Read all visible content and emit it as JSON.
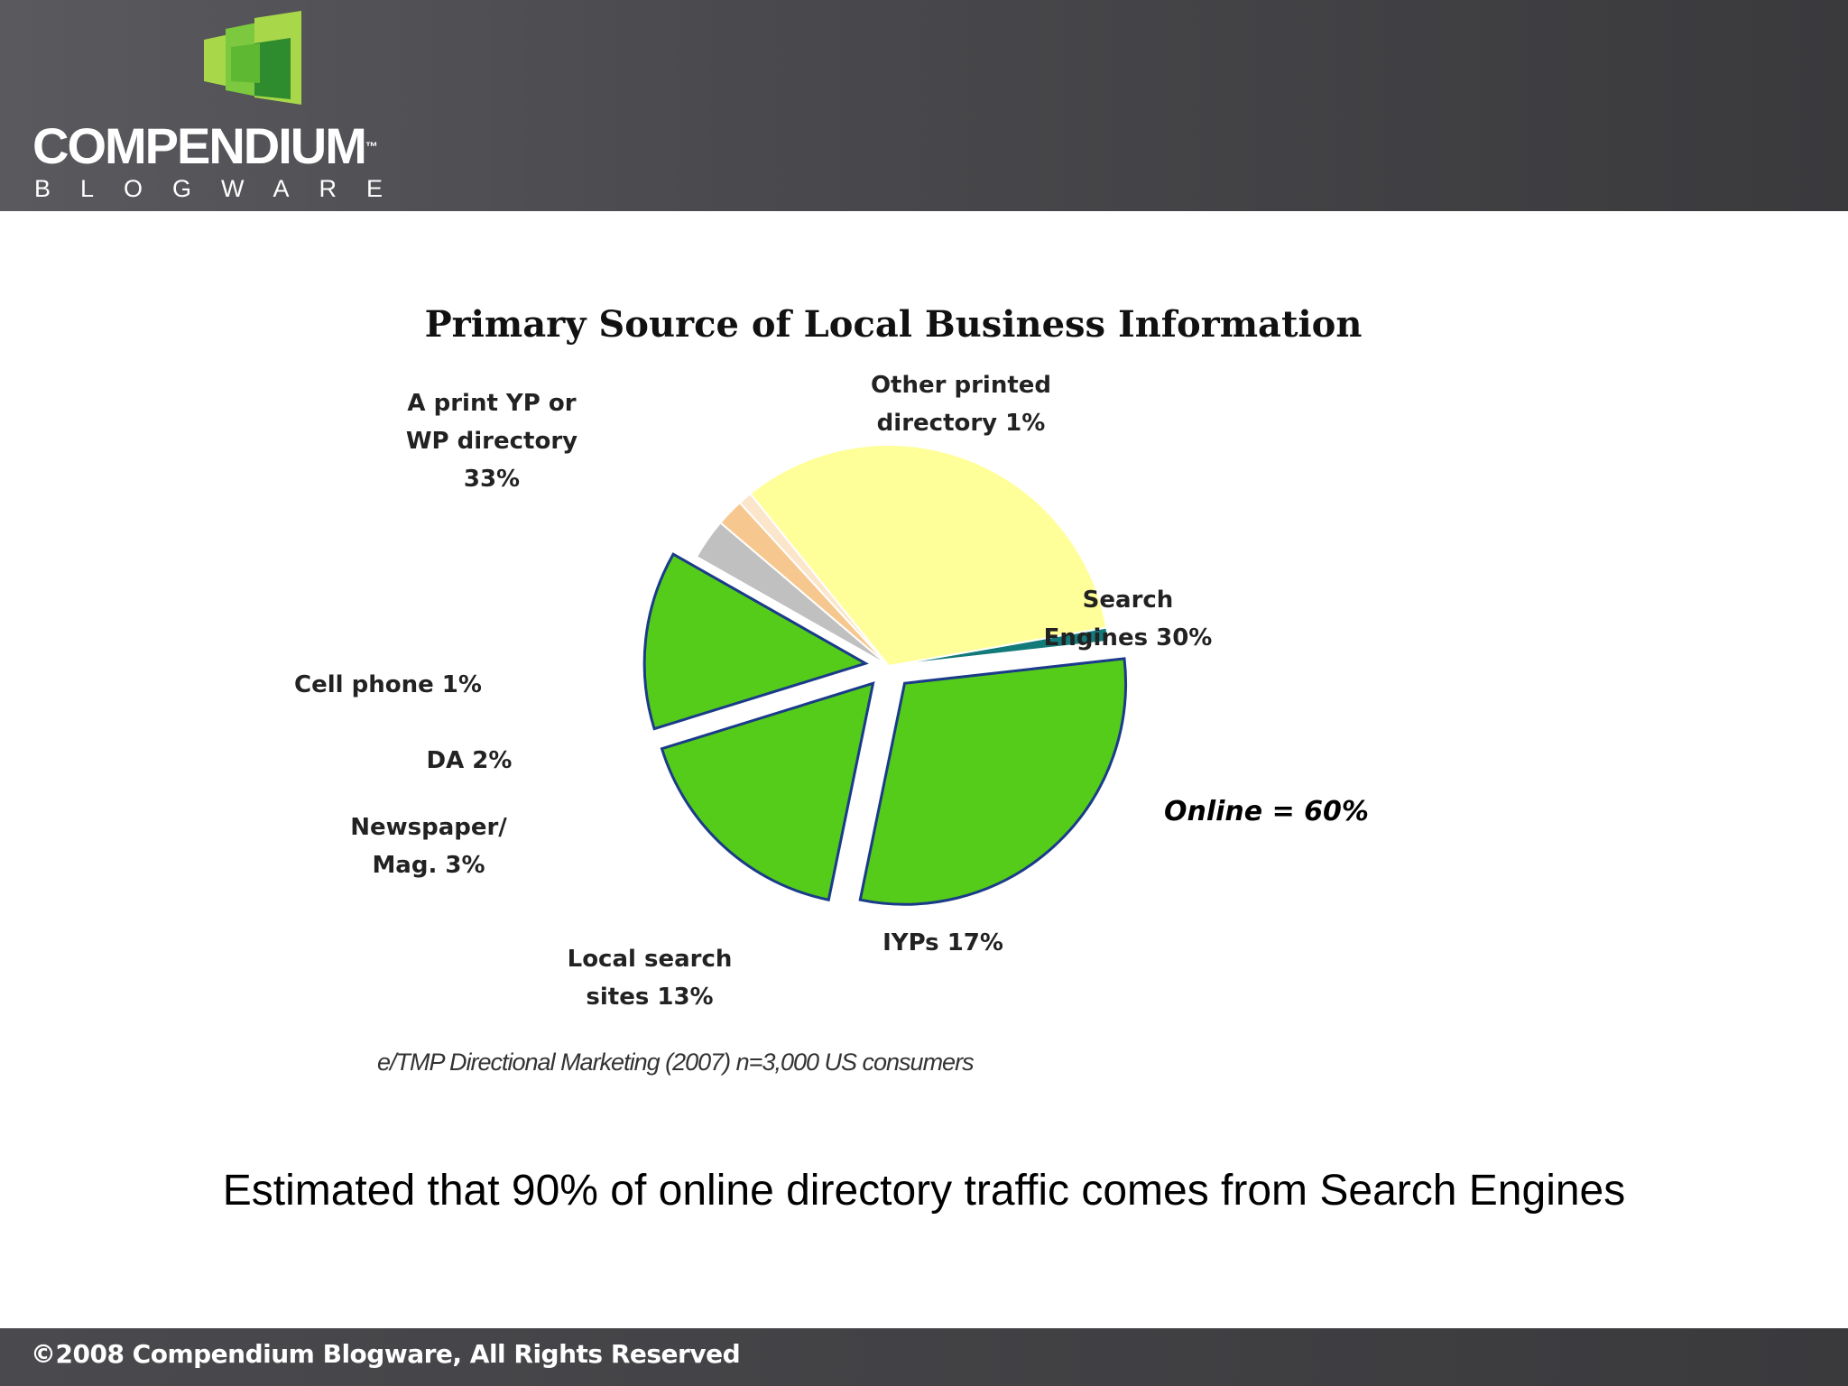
{
  "header": {
    "logo_word": "COMPENDIUM",
    "logo_tm": "™",
    "logo_sub": "BLOGWARE",
    "logo_icon": "compendium-logo-icon",
    "colors": {
      "header_bg": "#4a4a4e",
      "logo_green_light": "#a8d84a",
      "logo_green": "#5fb832",
      "logo_green_dark": "#2e8b2e"
    }
  },
  "chart_data": {
    "type": "pie",
    "title": "Primary Source of Local Business Information",
    "slices": [
      {
        "label": "Other printed directory 1%",
        "value": 1,
        "color": "#137a7a",
        "exploded": false
      },
      {
        "label": "Search Engines 30%",
        "value": 30,
        "color": "#55cc1a",
        "exploded": true
      },
      {
        "label": "IYPs 17%",
        "value": 17,
        "color": "#55cc1a",
        "exploded": true
      },
      {
        "label": "Local search sites 13%",
        "value": 13,
        "color": "#55cc1a",
        "exploded": true
      },
      {
        "label": "Newspaper/ Mag. 3%",
        "value": 3,
        "color": "#c0c0c0",
        "exploded": false
      },
      {
        "label": "DA 2%",
        "value": 2,
        "color": "#f6c890",
        "exploded": false
      },
      {
        "label": "Cell phone 1%",
        "value": 1,
        "color": "#fbe6cc",
        "exploded": false
      },
      {
        "label": "A print YP or WP directory 33%",
        "value": 33,
        "color": "#ffff99",
        "exploded": false
      }
    ],
    "label_display": [
      "Other printed\ndirectory 1%",
      "Search\nEngines 30%",
      "IYPs 17%",
      "Local search\nsites 13%",
      "Newspaper/\nMag. 3%",
      "DA 2%",
      "Cell phone 1%",
      "A print YP or\nWP directory\n33%"
    ],
    "annotation": "Online = 60%",
    "source": "e/TMP Directional Marketing (2007) n=3,000 US consumers",
    "legend": "none"
  },
  "caption": "Estimated that 90% of online directory traffic comes from Search Engines",
  "footer": {
    "copyright": "©2008 Compendium Blogware, All Rights Reserved"
  }
}
